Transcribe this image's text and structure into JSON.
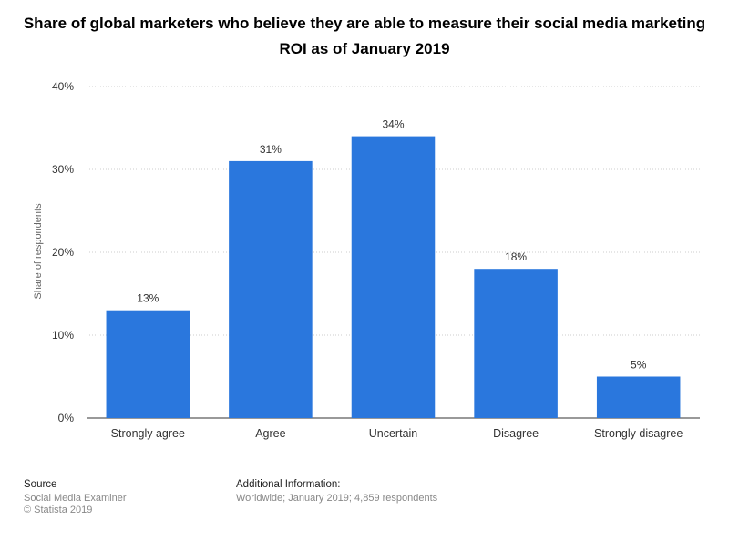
{
  "chart_data": {
    "type": "bar",
    "title": "Share of global marketers who believe they are able to measure their social media marketing ROI as of January 2019",
    "categories": [
      "Strongly agree",
      "Agree",
      "Uncertain",
      "Disagree",
      "Strongly disagree"
    ],
    "values": [
      13,
      31,
      34,
      18,
      5
    ],
    "value_labels": [
      "13%",
      "31%",
      "34%",
      "18%",
      "5%"
    ],
    "ylabel": "Share of respondents",
    "xlabel": "",
    "ylim": [
      0,
      40
    ],
    "yticks": [
      0,
      10,
      20,
      30,
      40
    ],
    "ytick_labels": [
      "0%",
      "10%",
      "20%",
      "30%",
      "40%"
    ],
    "grid": true,
    "bar_color": "#2a77dd",
    "grid_color": "#cccccc"
  },
  "footer": {
    "source_heading": "Source",
    "source_lines": [
      "Social Media Examiner",
      "© Statista 2019"
    ],
    "additional_heading": "Additional Information:",
    "additional_text": "Worldwide; January 2019; 4,859 respondents"
  }
}
